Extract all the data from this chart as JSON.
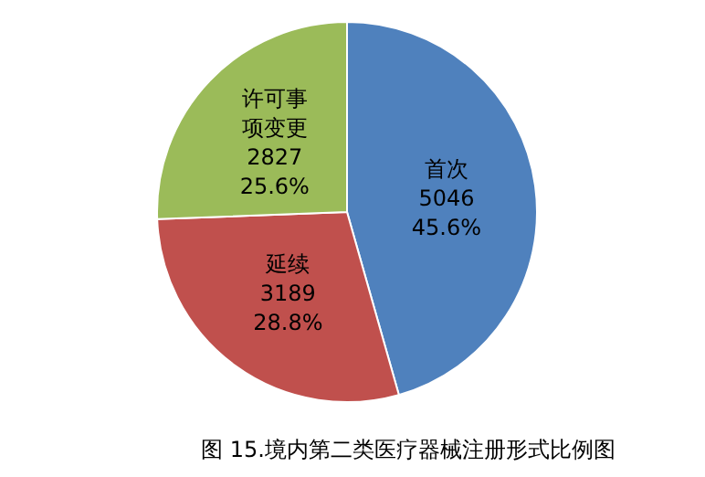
{
  "chart_data": {
    "type": "pie",
    "title": "图 15.境内第二类医疗器械注册形式比例图",
    "categories": [
      "首次",
      "延续",
      "许可事项变更"
    ],
    "values": [
      45.6,
      28.8,
      25.6
    ],
    "colors": [
      "#4f81bd",
      "#c0504d",
      "#9bbb59"
    ],
    "value_labels": [
      "5046\n45.6%",
      "3189\n28.8%",
      "2827\n25.6%"
    ],
    "legend": false
  }
}
